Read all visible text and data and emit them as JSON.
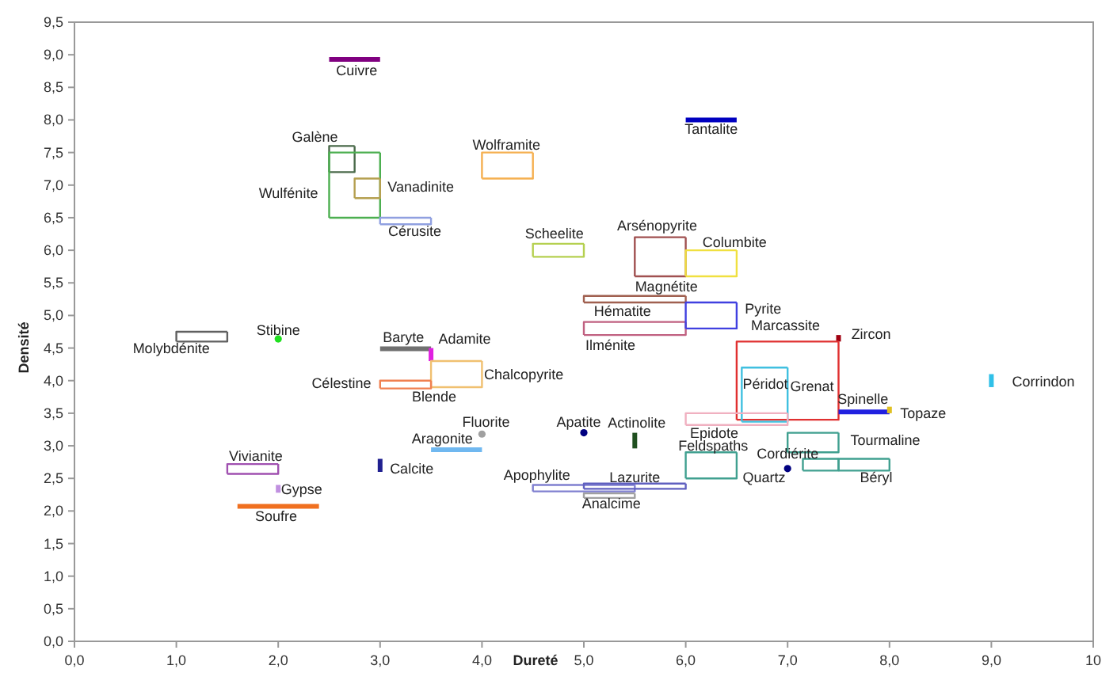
{
  "chart_data": {
    "type": "line",
    "xlabel": "Dureté",
    "ylabel": "Densité",
    "xlim": [
      0,
      10
    ],
    "ylim": [
      0,
      9.5
    ],
    "xticks": [
      {
        "value": 0,
        "label": "0,0"
      },
      {
        "value": 1,
        "label": "1,0"
      },
      {
        "value": 2,
        "label": "2,0"
      },
      {
        "value": 3,
        "label": "3,0"
      },
      {
        "value": 4,
        "label": "4,0"
      },
      {
        "value": 5,
        "label": "5,0"
      },
      {
        "value": 6,
        "label": "6,0"
      },
      {
        "value": 7,
        "label": "7,0"
      },
      {
        "value": 8,
        "label": "8,0"
      },
      {
        "value": 9,
        "label": "9,0"
      },
      {
        "value": 10,
        "label": "10"
      }
    ],
    "yticks": [
      {
        "value": 0,
        "label": "0,0"
      },
      {
        "value": 0.5,
        "label": "0,5"
      },
      {
        "value": 1,
        "label": "1,0"
      },
      {
        "value": 1.5,
        "label": "1,5"
      },
      {
        "value": 2,
        "label": "2,0"
      },
      {
        "value": 2.5,
        "label": "2,5"
      },
      {
        "value": 3,
        "label": "3,0"
      },
      {
        "value": 3.5,
        "label": "3,5"
      },
      {
        "value": 4,
        "label": "4,0"
      },
      {
        "value": 4.5,
        "label": "4,5"
      },
      {
        "value": 5,
        "label": "5,0"
      },
      {
        "value": 5.5,
        "label": "5,5"
      },
      {
        "value": 6,
        "label": "6,0"
      },
      {
        "value": 6.5,
        "label": "6,5"
      },
      {
        "value": 7,
        "label": "7,0"
      },
      {
        "value": 7.5,
        "label": "7,5"
      },
      {
        "value": 8,
        "label": "8,0"
      },
      {
        "value": 8.5,
        "label": "8,5"
      },
      {
        "value": 9,
        "label": "9,0"
      },
      {
        "value": 9.5,
        "label": "9,5"
      }
    ],
    "series": [
      {
        "color": "#800080",
        "x": [
          2.5,
          3.0
        ],
        "values": [
          8.93,
          8.93
        ]
      },
      {
        "color": "#0000c0",
        "x": [
          6.0,
          6.5
        ],
        "values": [
          8.0,
          8.0
        ]
      },
      {
        "color": "#4a6a4a",
        "x": [
          2.5,
          2.5,
          2.75
        ],
        "values": [
          7.2,
          7.6,
          7.6
        ]
      },
      {
        "color": "#4a6a4a",
        "x": [
          2.5,
          2.75,
          2.75
        ],
        "values": [
          7.2,
          7.2,
          7.6
        ]
      },
      {
        "color": "#4caf50",
        "x": [
          2.5,
          2.5,
          3.0
        ],
        "values": [
          6.5,
          7.5,
          7.5
        ]
      },
      {
        "color": "#4caf50",
        "x": [
          2.5,
          3.0,
          3.0
        ],
        "values": [
          6.5,
          6.5,
          7.5
        ]
      },
      {
        "color": "#b5a050",
        "x": [
          2.75,
          2.75,
          3.0
        ],
        "values": [
          6.8,
          7.1,
          7.1
        ]
      },
      {
        "color": "#b5a050",
        "x": [
          2.75,
          3.0,
          3.0
        ],
        "values": [
          6.8,
          6.8,
          7.1
        ]
      },
      {
        "color": "#90a0e0",
        "x": [
          3.0,
          3.0,
          3.5
        ],
        "values": [
          6.4,
          6.5,
          6.5
        ]
      },
      {
        "color": "#90a0e0",
        "x": [
          3.0,
          3.5,
          3.5
        ],
        "values": [
          6.4,
          6.4,
          6.5
        ]
      },
      {
        "color": "#f5b050",
        "x": [
          4.0,
          4.0,
          4.5
        ],
        "values": [
          7.1,
          7.5,
          7.5
        ]
      },
      {
        "color": "#f5b050",
        "x": [
          4.0,
          4.5,
          4.5
        ],
        "values": [
          7.1,
          7.1,
          7.5
        ]
      },
      {
        "color": "#b5d050",
        "x": [
          4.5,
          4.5,
          5.0
        ],
        "values": [
          5.9,
          6.1,
          6.1
        ]
      },
      {
        "color": "#b5d050",
        "x": [
          4.5,
          5.0,
          5.0
        ],
        "values": [
          5.9,
          5.9,
          6.1
        ]
      },
      {
        "color": "#a05050",
        "x": [
          5.5,
          5.5,
          6.0
        ],
        "values": [
          5.6,
          6.2,
          6.2
        ]
      },
      {
        "color": "#a05050",
        "x": [
          5.5,
          6.0,
          6.0
        ],
        "values": [
          5.6,
          5.6,
          6.2
        ]
      },
      {
        "color": "#f0e040",
        "x": [
          6.0,
          6.0,
          6.5
        ],
        "values": [
          5.6,
          6.0,
          6.0
        ]
      },
      {
        "color": "#f0e040",
        "x": [
          6.0,
          6.5,
          6.5
        ],
        "values": [
          5.6,
          5.6,
          6.0
        ]
      },
      {
        "color": "#a06050",
        "x": [
          5.0,
          5.0,
          6.0
        ],
        "values": [
          5.2,
          5.3,
          5.3
        ]
      },
      {
        "color": "#a06050",
        "x": [
          5.0,
          6.0,
          6.0
        ],
        "values": [
          5.2,
          5.2,
          5.3
        ]
      },
      {
        "color": "#c06080",
        "x": [
          5.0,
          5.0,
          6.0
        ],
        "values": [
          4.7,
          4.9,
          4.9
        ]
      },
      {
        "color": "#c06080",
        "x": [
          5.0,
          6.0,
          6.0
        ],
        "values": [
          4.7,
          4.7,
          4.9
        ]
      },
      {
        "color": "#4040e0",
        "x": [
          6.0,
          6.0,
          6.5
        ],
        "values": [
          4.8,
          5.2,
          5.2
        ]
      },
      {
        "color": "#4040e0",
        "x": [
          6.0,
          6.5,
          6.5
        ],
        "values": [
          4.8,
          4.8,
          5.2
        ]
      },
      {
        "color": "#a00010",
        "x": [
          7.5,
          7.5
        ],
        "values": [
          4.6,
          4.7
        ]
      },
      {
        "color": "#e03030",
        "x": [
          6.5,
          6.5,
          7.5
        ],
        "values": [
          3.4,
          4.6,
          4.6
        ]
      },
      {
        "color": "#e03030",
        "x": [
          6.5,
          7.5,
          7.5
        ],
        "values": [
          3.4,
          3.4,
          4.6
        ]
      },
      {
        "color": "#40c0e0",
        "x": [
          6.55,
          6.55,
          7.0
        ],
        "values": [
          3.37,
          4.2,
          4.2
        ]
      },
      {
        "color": "#40c0e0",
        "x": [
          6.55,
          7.0,
          7.0
        ],
        "values": [
          3.37,
          3.37,
          4.2
        ]
      },
      {
        "color": "#f0b0c0",
        "x": [
          6.0,
          6.0,
          7.0
        ],
        "values": [
          3.32,
          3.5,
          3.5
        ]
      },
      {
        "color": "#f0b0c0",
        "x": [
          6.0,
          7.0,
          7.0
        ],
        "values": [
          3.32,
          3.32,
          3.5
        ]
      },
      {
        "color": "#2020e0",
        "x": [
          7.5,
          8.0
        ],
        "values": [
          3.52,
          3.52
        ]
      },
      {
        "color": "#e0c020",
        "x": [
          8.0,
          8.0
        ],
        "values": [
          3.5,
          3.6
        ]
      },
      {
        "color": "#30c0e8",
        "x": [
          9.0,
          9.0
        ],
        "values": [
          3.9,
          4.1
        ]
      },
      {
        "color": "#40a090",
        "x": [
          7.0,
          7.0,
          7.5
        ],
        "values": [
          2.9,
          3.2,
          3.2
        ]
      },
      {
        "color": "#40a090",
        "x": [
          7.0,
          7.5,
          7.5
        ],
        "values": [
          2.9,
          2.9,
          3.2
        ]
      },
      {
        "color": "#40a090",
        "x": [
          7.15,
          7.15,
          7.5
        ],
        "values": [
          2.62,
          2.8,
          2.8
        ]
      },
      {
        "color": "#40a090",
        "x": [
          7.15,
          7.5,
          7.5
        ],
        "values": [
          2.62,
          2.62,
          2.8
        ]
      },
      {
        "color": "#40a090",
        "x": [
          7.5,
          7.5,
          8.0
        ],
        "values": [
          2.62,
          2.8,
          2.8
        ]
      },
      {
        "color": "#40a090",
        "x": [
          7.5,
          8.0,
          8.0
        ],
        "values": [
          2.62,
          2.62,
          2.8
        ]
      },
      {
        "type": "scatter",
        "color": "#000080",
        "x": [
          7.0
        ],
        "values": [
          2.65
        ]
      },
      {
        "color": "#40a090",
        "x": [
          6.0,
          6.0,
          6.5
        ],
        "values": [
          2.5,
          2.9,
          2.9
        ]
      },
      {
        "color": "#40a090",
        "x": [
          6.0,
          6.5,
          6.5
        ],
        "values": [
          2.5,
          2.5,
          2.9
        ]
      },
      {
        "type": "scatter",
        "color": "#000080",
        "x": [
          5.0
        ],
        "values": [
          3.2
        ]
      },
      {
        "color": "#205020",
        "x": [
          5.5,
          5.5
        ],
        "values": [
          2.96,
          3.2
        ]
      },
      {
        "color": "#8080d0",
        "x": [
          4.5,
          4.5,
          5.5
        ],
        "values": [
          2.3,
          2.4,
          2.4
        ]
      },
      {
        "color": "#8080d0",
        "x": [
          4.5,
          5.5,
          5.5
        ],
        "values": [
          2.3,
          2.3,
          2.4
        ]
      },
      {
        "color": "#6060c0",
        "x": [
          5.0,
          5.0,
          6.0
        ],
        "values": [
          2.34,
          2.42,
          2.42
        ]
      },
      {
        "color": "#6060c0",
        "x": [
          5.0,
          6.0,
          6.0
        ],
        "values": [
          2.34,
          2.34,
          2.42
        ]
      },
      {
        "color": "#a0a0a0",
        "x": [
          5.0,
          5.0,
          5.5
        ],
        "values": [
          2.2,
          2.27,
          2.27
        ]
      },
      {
        "color": "#a0a0a0",
        "x": [
          5.0,
          5.5,
          5.5
        ],
        "values": [
          2.2,
          2.2,
          2.27
        ]
      },
      {
        "type": "scatter",
        "color": "#a0a0a0",
        "x": [
          4.0
        ],
        "values": [
          3.18
        ]
      },
      {
        "color": "#70b8f0",
        "x": [
          3.5,
          4.0
        ],
        "values": [
          2.94,
          2.94
        ]
      },
      {
        "color": "#202090",
        "x": [
          3.0,
          3.0
        ],
        "values": [
          2.6,
          2.8
        ]
      },
      {
        "color": "#707070",
        "x": [
          3.0,
          3.5
        ],
        "values": [
          4.49,
          4.49
        ]
      },
      {
        "color": "#e020e0",
        "x": [
          3.5,
          3.5
        ],
        "values": [
          4.3,
          4.5
        ]
      },
      {
        "color": "#f0c070",
        "x": [
          3.5,
          3.5,
          4.0
        ],
        "values": [
          3.9,
          4.3,
          4.3
        ]
      },
      {
        "color": "#f0c070",
        "x": [
          3.5,
          4.0,
          4.0
        ],
        "values": [
          3.9,
          3.9,
          4.3
        ]
      },
      {
        "color": "#f08050",
        "x": [
          3.0,
          3.0,
          3.5
        ],
        "values": [
          3.88,
          4.0,
          4.0
        ]
      },
      {
        "color": "#f08050",
        "x": [
          3.0,
          3.5,
          3.5
        ],
        "values": [
          3.88,
          3.88,
          4.0
        ]
      },
      {
        "color": "#606060",
        "x": [
          1.0,
          1.0,
          1.5
        ],
        "values": [
          4.6,
          4.75,
          4.75
        ]
      },
      {
        "color": "#606060",
        "x": [
          1.0,
          1.5,
          1.5
        ],
        "values": [
          4.6,
          4.6,
          4.75
        ]
      },
      {
        "type": "scatter",
        "color": "#20e020",
        "x": [
          2.0
        ],
        "values": [
          4.64
        ]
      },
      {
        "color": "#a050b0",
        "x": [
          1.5,
          1.5,
          2.0
        ],
        "values": [
          2.57,
          2.72,
          2.72
        ]
      },
      {
        "color": "#a050b0",
        "x": [
          1.5,
          2.0,
          2.0
        ],
        "values": [
          2.57,
          2.57,
          2.72
        ]
      },
      {
        "color": "#c090e0",
        "x": [
          2.0,
          2.0
        ],
        "values": [
          2.28,
          2.4
        ]
      },
      {
        "color": "#f07020",
        "x": [
          1.6,
          2.4
        ],
        "values": [
          2.07,
          2.07
        ]
      }
    ],
    "annotations": [
      "Cuivre",
      "Tantalite",
      "Galène",
      "Wulfénite",
      "Vanadinite",
      "Cérusite",
      "Wolframite",
      "Scheelite",
      "Arsénopyrite",
      "Columbite",
      "Magnétite",
      "Hématite",
      "Ilménite",
      "Pyrite",
      "Marcassite",
      "Zircon",
      "Grenat",
      "Péridot",
      "Epidote",
      "Spinelle",
      "Topaze",
      "Corrindon",
      "Tourmaline",
      "Cordiérite",
      "Béryl",
      "Quartz",
      "Feldspaths",
      "Apatite",
      "Actinolite",
      "Apophylite",
      "Lazurite",
      "Analcime",
      "Fluorite",
      "Aragonite",
      "Calcite",
      "Baryte",
      "Adamite",
      "Chalcopyrite",
      "Célestine",
      "Blende",
      "Molybdénite",
      "Stibine",
      "Vivianite",
      "Gypse",
      "Soufre"
    ]
  }
}
